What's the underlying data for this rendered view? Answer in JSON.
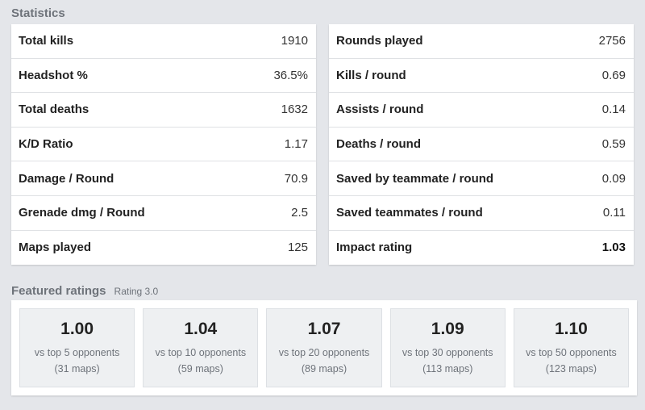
{
  "statistics": {
    "title": "Statistics",
    "left": [
      {
        "label": "Total kills",
        "value": "1910"
      },
      {
        "label": "Headshot %",
        "value": "36.5%"
      },
      {
        "label": "Total deaths",
        "value": "1632"
      },
      {
        "label": "K/D Ratio",
        "value": "1.17"
      },
      {
        "label": "Damage / Round",
        "value": "70.9"
      },
      {
        "label": "Grenade dmg / Round",
        "value": "2.5"
      },
      {
        "label": "Maps played",
        "value": "125"
      }
    ],
    "right": [
      {
        "label": "Rounds played",
        "value": "2756"
      },
      {
        "label": "Kills / round",
        "value": "0.69"
      },
      {
        "label": "Assists / round",
        "value": "0.14"
      },
      {
        "label": "Deaths / round",
        "value": "0.59"
      },
      {
        "label": "Saved by teammate / round",
        "value": "0.09"
      },
      {
        "label": "Saved teammates / round",
        "value": "0.11"
      },
      {
        "label": "Impact rating",
        "value": "1.03"
      }
    ]
  },
  "featured": {
    "title": "Featured ratings",
    "subtitle": "Rating 3.0",
    "cards": [
      {
        "value": "1.00",
        "desc": "vs top 5 opponents",
        "maps": "(31 maps)"
      },
      {
        "value": "1.04",
        "desc": "vs top 10 opponents",
        "maps": "(59 maps)"
      },
      {
        "value": "1.07",
        "desc": "vs top 20 opponents",
        "maps": "(89 maps)"
      },
      {
        "value": "1.09",
        "desc": "vs top 30 opponents",
        "maps": "(113 maps)"
      },
      {
        "value": "1.10",
        "desc": "vs top 50 opponents",
        "maps": "(123 maps)"
      }
    ]
  }
}
